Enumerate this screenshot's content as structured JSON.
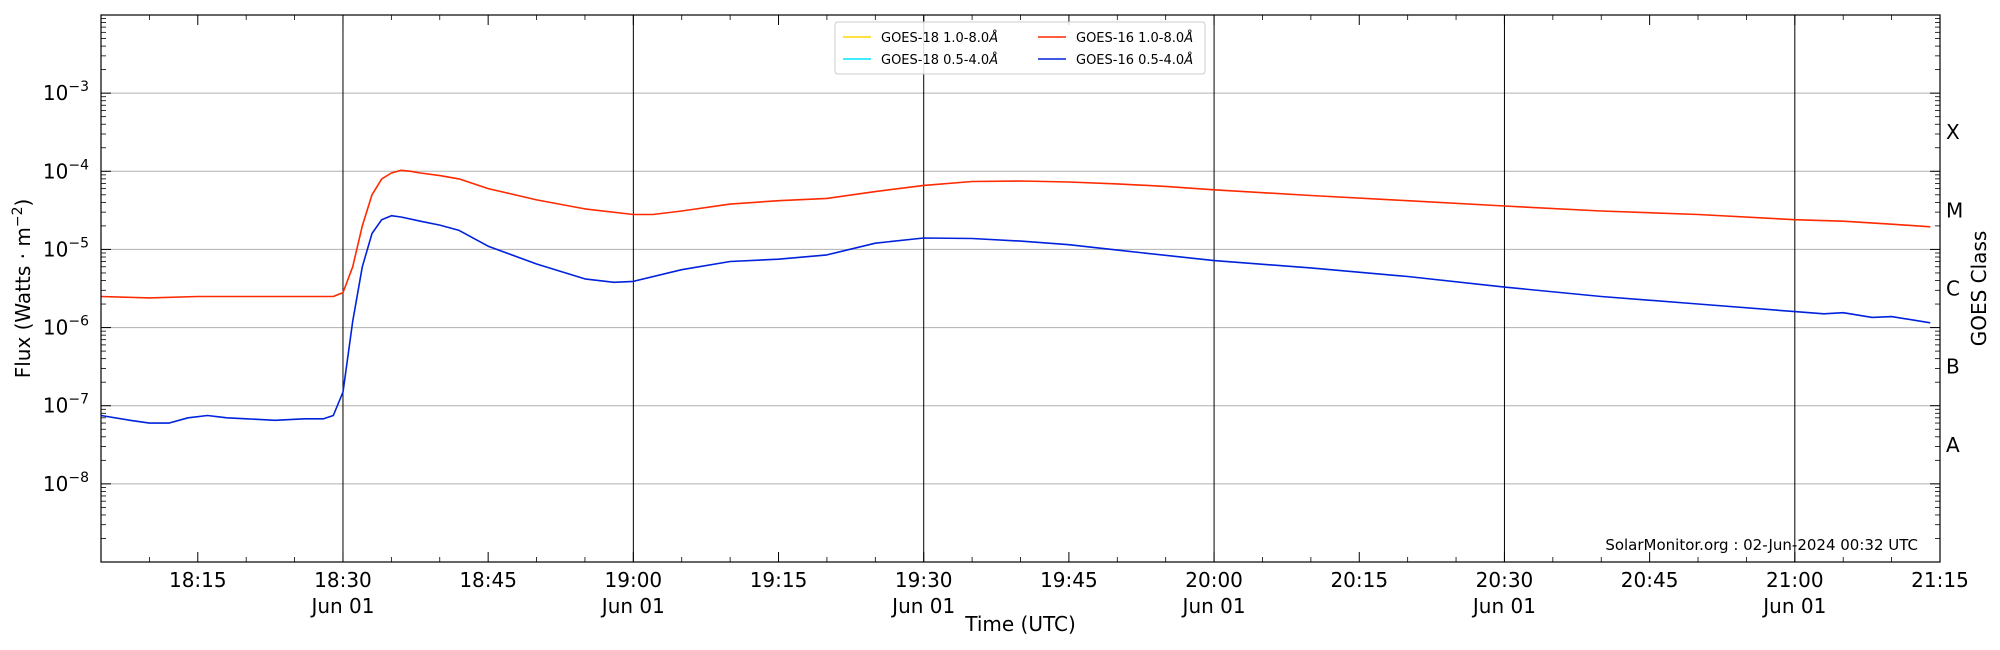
{
  "chart_data": {
    "type": "line",
    "xlabel": "Time (UTC)",
    "ylabel_main": "Flux (Watts · m",
    "ylabel_exp": "−2",
    "ylabel_close": ")",
    "ylabel_right": "GOES Class",
    "y_scale": "log",
    "ylim": [
      1e-09,
      0.01
    ],
    "xlim": [
      "18:05",
      "21:15"
    ],
    "x_ticks": [
      {
        "time": "18:15",
        "label": "18:15",
        "date": ""
      },
      {
        "time": "18:30",
        "label": "18:30",
        "date": "Jun 01"
      },
      {
        "time": "18:45",
        "label": "18:45",
        "date": ""
      },
      {
        "time": "19:00",
        "label": "19:00",
        "date": "Jun 01"
      },
      {
        "time": "19:15",
        "label": "19:15",
        "date": ""
      },
      {
        "time": "19:30",
        "label": "19:30",
        "date": "Jun 01"
      },
      {
        "time": "19:45",
        "label": "19:45",
        "date": ""
      },
      {
        "time": "20:00",
        "label": "20:00",
        "date": "Jun 01"
      },
      {
        "time": "20:15",
        "label": "20:15",
        "date": ""
      },
      {
        "time": "20:30",
        "label": "20:30",
        "date": "Jun 01"
      },
      {
        "time": "20:45",
        "label": "20:45",
        "date": ""
      },
      {
        "time": "21:00",
        "label": "21:00",
        "date": "Jun 01"
      },
      {
        "time": "21:15",
        "label": "21:15",
        "date": ""
      }
    ],
    "vertical_lines": [
      "18:30",
      "19:00",
      "19:30",
      "20:00",
      "20:30",
      "21:00"
    ],
    "y_ticks": [
      {
        "value": 1e-08,
        "base": "10",
        "exp": "−8"
      },
      {
        "value": 1e-07,
        "base": "10",
        "exp": "−7"
      },
      {
        "value": 1e-06,
        "base": "10",
        "exp": "−6"
      },
      {
        "value": 1e-05,
        "base": "10",
        "exp": "−5"
      },
      {
        "value": 0.0001,
        "base": "10",
        "exp": "−4"
      },
      {
        "value": 0.001,
        "base": "10",
        "exp": "−3"
      }
    ],
    "grid": "horizontal",
    "goes_classes": [
      {
        "label": "A",
        "value": 3.16e-08
      },
      {
        "label": "B",
        "value": 3.16e-07
      },
      {
        "label": "C",
        "value": 3.16e-06
      },
      {
        "label": "M",
        "value": 3.16e-05
      },
      {
        "label": "X",
        "value": 0.000316
      }
    ],
    "legend_position": "top-center",
    "series": [
      {
        "name": "GOES-18 1.0-8.0",
        "unit": "Å",
        "color": "#ffd700",
        "x": [],
        "y": []
      },
      {
        "name": "GOES-16 1.0-8.0",
        "unit": "Å",
        "color": "#ff2a00",
        "x": [
          "18:05",
          "18:10",
          "18:15",
          "18:20",
          "18:25",
          "18:29",
          "18:30",
          "18:31",
          "18:32",
          "18:33",
          "18:34",
          "18:35",
          "18:36",
          "18:37",
          "18:38",
          "18:40",
          "18:42",
          "18:45",
          "18:50",
          "18:55",
          "19:00",
          "19:02",
          "19:05",
          "19:10",
          "19:15",
          "19:20",
          "19:25",
          "19:30",
          "19:35",
          "19:40",
          "19:45",
          "19:50",
          "19:55",
          "20:00",
          "20:10",
          "20:20",
          "20:30",
          "20:40",
          "20:50",
          "21:00",
          "21:05",
          "21:10",
          "21:14"
        ],
        "y": [
          2.5e-06,
          2.4e-06,
          2.5e-06,
          2.5e-06,
          2.5e-06,
          2.5e-06,
          2.8e-06,
          6e-06,
          2e-05,
          5e-05,
          8e-05,
          9.5e-05,
          0.000103,
          0.0001,
          9.5e-05,
          8.8e-05,
          8e-05,
          6e-05,
          4.3e-05,
          3.3e-05,
          2.8e-05,
          2.8e-05,
          3.1e-05,
          3.8e-05,
          4.2e-05,
          4.5e-05,
          5.5e-05,
          6.6e-05,
          7.4e-05,
          7.5e-05,
          7.3e-05,
          6.9e-05,
          6.4e-05,
          5.8e-05,
          4.9e-05,
          4.2e-05,
          3.6e-05,
          3.1e-05,
          2.8e-05,
          2.4e-05,
          2.3e-05,
          2.1e-05,
          1.95e-05
        ]
      },
      {
        "name": "GOES-18 0.5-4.0",
        "unit": "Å",
        "color": "#00e5ff",
        "x": [],
        "y": []
      },
      {
        "name": "GOES-16 0.5-4.0",
        "unit": "Å",
        "color": "#0022dd",
        "x": [
          "18:05",
          "18:08",
          "18:10",
          "18:12",
          "18:14",
          "18:16",
          "18:18",
          "18:20",
          "18:23",
          "18:26",
          "18:28",
          "18:29",
          "18:30",
          "18:31",
          "18:32",
          "18:33",
          "18:34",
          "18:35",
          "18:36",
          "18:38",
          "18:40",
          "18:42",
          "18:45",
          "18:50",
          "18:55",
          "18:58",
          "19:00",
          "19:05",
          "19:10",
          "19:15",
          "19:20",
          "19:25",
          "19:30",
          "19:35",
          "19:40",
          "19:45",
          "19:50",
          "20:00",
          "20:10",
          "20:20",
          "20:30",
          "20:40",
          "20:50",
          "21:00",
          "21:03",
          "21:05",
          "21:08",
          "21:10",
          "21:14"
        ],
        "y": [
          7.5e-08,
          6.5e-08,
          6e-08,
          6e-08,
          7e-08,
          7.5e-08,
          7e-08,
          6.8e-08,
          6.5e-08,
          6.8e-08,
          6.8e-08,
          7.5e-08,
          1.5e-07,
          1.2e-06,
          6e-06,
          1.6e-05,
          2.4e-05,
          2.7e-05,
          2.6e-05,
          2.3e-05,
          2.05e-05,
          1.75e-05,
          1.1e-05,
          6.5e-06,
          4.2e-06,
          3.8e-06,
          3.9e-06,
          5.5e-06,
          7e-06,
          7.5e-06,
          8.5e-06,
          1.2e-05,
          1.4e-05,
          1.38e-05,
          1.28e-05,
          1.15e-05,
          9.8e-06,
          7.2e-06,
          5.8e-06,
          4.5e-06,
          3.3e-06,
          2.5e-06,
          2e-06,
          1.6e-06,
          1.5e-06,
          1.55e-06,
          1.35e-06,
          1.38e-06,
          1.15e-06
        ]
      }
    ],
    "annotation": "SolarMonitor.org : 02-Jun-2024 00:32 UTC"
  }
}
